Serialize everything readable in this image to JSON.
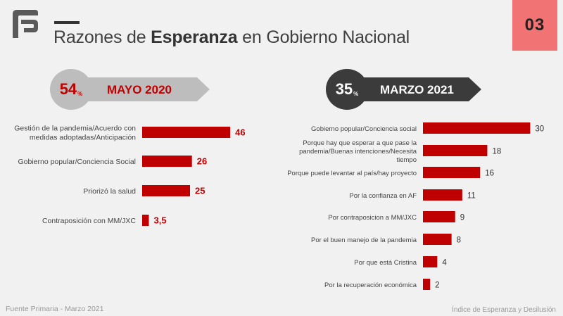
{
  "header": {
    "title_pre": "Razones de ",
    "title_bold": "Esperanza",
    "title_post": " en Gobierno Nacional",
    "page_number": "03",
    "logo_icon": "brand-logo-icon"
  },
  "badges": [
    {
      "percent": "54",
      "percent_sign": "%",
      "period": "MAYO 2020"
    },
    {
      "percent": "35",
      "percent_sign": "%",
      "period": "MARZO 2021"
    }
  ],
  "colors": {
    "bar": "#c00000",
    "accent": "#f17373",
    "badge_dark": "#3b3b3b",
    "badge_light": "#bdbdbd"
  },
  "chart_data": [
    {
      "type": "bar",
      "orientation": "horizontal",
      "title": "MAYO 2020",
      "categories": [
        "Gestión de la pandemia/Acuerdo con medidas adoptadas/Anticipación",
        "Gobierno popular/Conciencia Social",
        "Priorizó la salud",
        "Contraposición con MM/JXC"
      ],
      "values": [
        46,
        26,
        25,
        3.5
      ],
      "value_labels": [
        "46",
        "26",
        "25",
        "3,5"
      ]
    },
    {
      "type": "bar",
      "orientation": "horizontal",
      "title": "MARZO 2021",
      "categories": [
        "Gobierno popular/Conciencia social",
        "Porque hay que esperar a que pase la pandemia/Buenas intenciones/Necesita tiempo",
        "Porque puede levantar al país/hay proyecto",
        "Por la confianza en AF",
        "Por contraposicion a MM/JXC",
        "Por el buen manejo de la pandemia",
        "Por que está Cristina",
        "Por la recuperación económica"
      ],
      "values": [
        30,
        18,
        16,
        11,
        9,
        8,
        4,
        2
      ],
      "value_labels": [
        "30",
        "18",
        "16",
        "11",
        "9",
        "8",
        "4",
        "2"
      ]
    }
  ],
  "footer": {
    "source": "Fuente Primaria - Marzo 2021",
    "brand": "Índice de Esperanza y Desilusión"
  }
}
